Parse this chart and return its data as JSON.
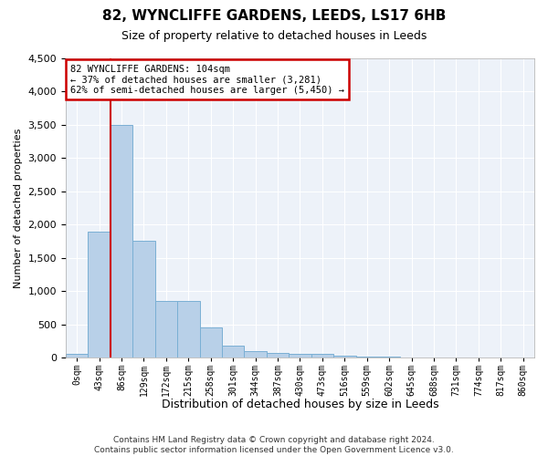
{
  "title1": "82, WYNCLIFFE GARDENS, LEEDS, LS17 6HB",
  "title2": "Size of property relative to detached houses in Leeds",
  "xlabel": "Distribution of detached houses by size in Leeds",
  "ylabel": "Number of detached properties",
  "bar_color": "#b8d0e8",
  "bar_edgecolor": "#7aafd4",
  "vline_color": "#cc0000",
  "vline_x": 2,
  "annotation_line1": "82 WYNCLIFFE GARDENS: 104sqm",
  "annotation_line2": "← 37% of detached houses are smaller (3,281)",
  "annotation_line3": "62% of semi-detached houses are larger (5,450) →",
  "background_color": "#edf2f9",
  "bins": [
    "0sqm",
    "43sqm",
    "86sqm",
    "129sqm",
    "172sqm",
    "215sqm",
    "258sqm",
    "301sqm",
    "344sqm",
    "387sqm",
    "430sqm",
    "473sqm",
    "516sqm",
    "559sqm",
    "602sqm",
    "645sqm",
    "688sqm",
    "731sqm",
    "774sqm",
    "817sqm",
    "860sqm"
  ],
  "values": [
    50,
    1900,
    3500,
    1750,
    850,
    850,
    450,
    175,
    100,
    75,
    60,
    50,
    30,
    15,
    10,
    7,
    5,
    3,
    2,
    2,
    1
  ],
  "ylim": [
    0,
    4500
  ],
  "yticks": [
    0,
    500,
    1000,
    1500,
    2000,
    2500,
    3000,
    3500,
    4000,
    4500
  ],
  "footer1": "Contains HM Land Registry data © Crown copyright and database right 2024.",
  "footer2": "Contains public sector information licensed under the Open Government Licence v3.0."
}
